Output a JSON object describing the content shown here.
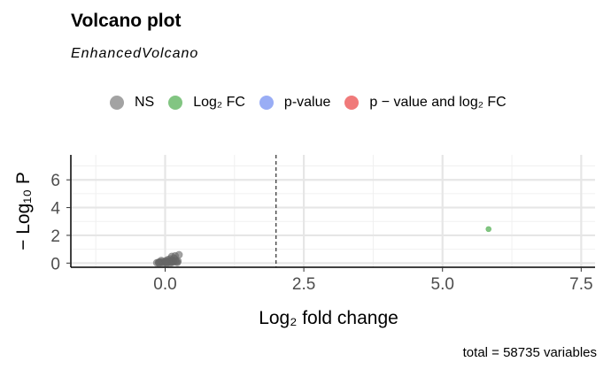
{
  "title": "Volcano plot",
  "subtitle": "EnhancedVolcano",
  "caption": "total = 58735 variables",
  "legend": [
    {
      "label": "NS",
      "color": "#666666"
    },
    {
      "label": "Log₂ FC",
      "color": "#2e9e2e"
    },
    {
      "label": "p-value",
      "color": "#5577ee"
    },
    {
      "label": "p − value and log₂ FC",
      "color": "#e62222"
    }
  ],
  "chart_data": {
    "type": "scatter",
    "xlabel": "Log₂ fold change",
    "ylabel": "− Log₁₀ P",
    "xlim": [
      -1.7,
      7.75
    ],
    "ylim": [
      -0.3,
      7.8
    ],
    "x_ticks": [
      0.0,
      2.5,
      5.0,
      7.5
    ],
    "x_tick_labels": [
      "0.0",
      "2.5",
      "5.0",
      "7.5"
    ],
    "y_ticks": [
      0,
      2,
      4,
      6
    ],
    "y_tick_labels": [
      "0",
      "2",
      "4",
      "6"
    ],
    "grid": true,
    "legend_position": "top",
    "cutoff_line_x": 2.0,
    "series": [
      {
        "name": "NS",
        "color": "#666666",
        "points": [
          [
            -0.15,
            0.02
          ],
          [
            -0.12,
            0.05
          ],
          [
            -0.1,
            0.08
          ],
          [
            -0.08,
            0.03
          ],
          [
            -0.05,
            0.1
          ],
          [
            -0.03,
            0.01
          ],
          [
            0.0,
            0.06
          ],
          [
            0.02,
            0.12
          ],
          [
            0.04,
            0.04
          ],
          [
            0.06,
            0.09
          ],
          [
            0.08,
            0.15
          ],
          [
            0.1,
            0.02
          ],
          [
            0.12,
            0.2
          ],
          [
            0.14,
            0.07
          ],
          [
            0.16,
            0.35
          ],
          [
            0.18,
            0.52
          ],
          [
            0.12,
            0.48
          ],
          [
            0.2,
            0.1
          ],
          [
            0.22,
            0.05
          ],
          [
            0.25,
            0.6
          ],
          [
            0.05,
            0.25
          ],
          [
            -0.07,
            0.18
          ],
          [
            0.09,
            0.3
          ],
          [
            0.15,
            0.12
          ],
          [
            0.03,
            0.0
          ],
          [
            -0.11,
            0.0
          ],
          [
            0.11,
            0.08
          ],
          [
            0.19,
            0.22
          ],
          [
            0.23,
            0.14
          ],
          [
            0.01,
            0.16
          ]
        ]
      },
      {
        "name": "Log₂ FC",
        "color": "#2e9e2e",
        "points": [
          [
            5.83,
            2.45
          ]
        ]
      }
    ]
  }
}
